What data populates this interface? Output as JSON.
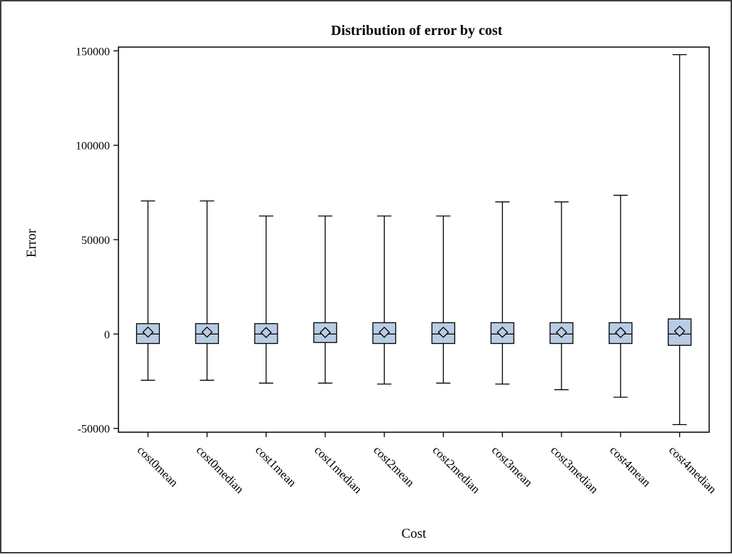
{
  "chart_data": {
    "type": "boxplot",
    "title": "Distribution of error by cost",
    "xlabel": "Cost",
    "ylabel": "Error",
    "ylim": [
      -52000,
      152000
    ],
    "yticks": [
      -50000,
      0,
      50000,
      100000,
      150000
    ],
    "ytick_labels": [
      "-50000",
      "0",
      "50000",
      "100000",
      "150000"
    ],
    "grid": false,
    "legend": "none",
    "box_color": "#b8cce4",
    "categories": [
      "cost0mean",
      "cost0median",
      "cost1mean",
      "cost1median",
      "cost2mean",
      "cost2median",
      "cost3mean",
      "cost3median",
      "cost4mean",
      "cost4median"
    ],
    "boxes": [
      {
        "min": -24500,
        "q1": -5000,
        "median": 0,
        "q3": 5500,
        "max": 70500,
        "mean": 1000
      },
      {
        "min": -24500,
        "q1": -5000,
        "median": 0,
        "q3": 5500,
        "max": 70500,
        "mean": 1000
      },
      {
        "min": -26000,
        "q1": -5000,
        "median": 0,
        "q3": 5500,
        "max": 62500,
        "mean": 800
      },
      {
        "min": -26000,
        "q1": -4500,
        "median": 0,
        "q3": 6000,
        "max": 62500,
        "mean": 800
      },
      {
        "min": -26500,
        "q1": -5000,
        "median": 0,
        "q3": 6000,
        "max": 62500,
        "mean": 900
      },
      {
        "min": -26000,
        "q1": -5000,
        "median": 0,
        "q3": 6000,
        "max": 62500,
        "mean": 900
      },
      {
        "min": -26500,
        "q1": -5000,
        "median": 0,
        "q3": 6000,
        "max": 70000,
        "mean": 900
      },
      {
        "min": -29500,
        "q1": -5000,
        "median": 0,
        "q3": 6000,
        "max": 70000,
        "mean": 900
      },
      {
        "min": -33500,
        "q1": -5000,
        "median": 0,
        "q3": 6000,
        "max": 73500,
        "mean": 800
      },
      {
        "min": -48000,
        "q1": -6000,
        "median": 0,
        "q3": 8000,
        "max": 148000,
        "mean": 1500
      }
    ]
  }
}
